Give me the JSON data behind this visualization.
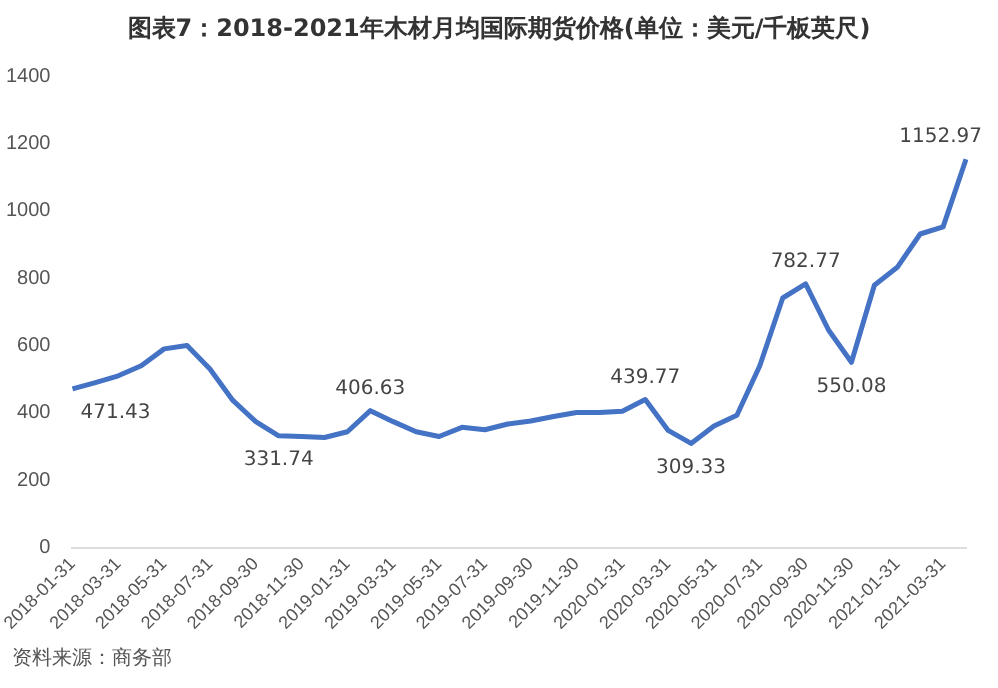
{
  "chart_data": {
    "type": "line",
    "title": "图表7：2018-2021年木材月均国际期货价格(单位：美元/千板英尺)",
    "categories": [
      "2018-01-31",
      null,
      "2018-03-31",
      null,
      "2018-05-31",
      null,
      "2018-07-31",
      null,
      "2018-09-30",
      null,
      "2018-11-30",
      null,
      "2019-01-31",
      null,
      "2019-03-31",
      null,
      "2019-05-31",
      null,
      "2019-07-31",
      null,
      "2019-09-30",
      null,
      "2019-11-30",
      null,
      "2020-01-31",
      null,
      "2020-03-31",
      null,
      "2020-05-31",
      null,
      "2020-07-31",
      null,
      "2020-09-30",
      null,
      "2020-11-30",
      null,
      "2021-01-31",
      null,
      "2021-03-31",
      null
    ],
    "values": [
      471.43,
      490,
      510,
      540,
      590,
      600,
      530,
      437,
      374,
      331.74,
      330,
      327,
      344,
      406.63,
      374,
      344,
      330,
      357,
      350,
      367,
      376,
      389,
      401,
      401,
      405,
      439.77,
      348,
      309.33,
      361,
      393,
      540,
      741,
      782.77,
      646,
      550.08,
      779,
      832,
      931,
      952,
      1152.97
    ],
    "value_labels": [
      "471.43",
      null,
      null,
      null,
      null,
      null,
      null,
      null,
      null,
      "331.74",
      null,
      null,
      null,
      "406.63",
      null,
      null,
      null,
      null,
      null,
      null,
      null,
      null,
      null,
      null,
      null,
      "439.77",
      null,
      "309.33",
      null,
      null,
      null,
      null,
      "782.77",
      null,
      "550.08",
      null,
      null,
      null,
      null,
      "1152.97"
    ],
    "color": "#4472c4",
    "ylim": [
      0,
      1400
    ],
    "yticks": [
      0,
      200,
      400,
      600,
      800,
      1000,
      1200,
      1400
    ],
    "grid": false,
    "legend": false,
    "marker": "none",
    "annotations": [
      "资料来源：商务部"
    ]
  }
}
